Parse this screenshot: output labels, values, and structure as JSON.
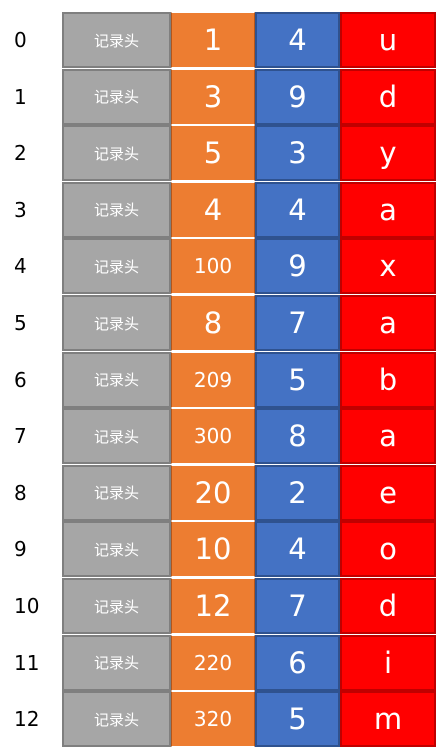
{
  "rows": [
    {
      "index": "0",
      "header": "记录头",
      "number": "1",
      "digit": "4",
      "letter": "u"
    },
    {
      "index": "1",
      "header": "记录头",
      "number": "3",
      "digit": "9",
      "letter": "d"
    },
    {
      "index": "2",
      "header": "记录头",
      "number": "5",
      "digit": "3",
      "letter": "y"
    },
    {
      "index": "3",
      "header": "记录头",
      "number": "4",
      "digit": "4",
      "letter": "a"
    },
    {
      "index": "4",
      "header": "记录头",
      "number": "100",
      "digit": "9",
      "letter": "x"
    },
    {
      "index": "5",
      "header": "记录头",
      "number": "8",
      "digit": "7",
      "letter": "a"
    },
    {
      "index": "6",
      "header": "记录头",
      "number": "209",
      "digit": "5",
      "letter": "b"
    },
    {
      "index": "7",
      "header": "记录头",
      "number": "300",
      "digit": "8",
      "letter": "a"
    },
    {
      "index": "8",
      "header": "记录头",
      "number": "20",
      "digit": "2",
      "letter": "e"
    },
    {
      "index": "9",
      "header": "记录头",
      "number": "10",
      "digit": "4",
      "letter": "o"
    },
    {
      "index": "10",
      "header": "记录头",
      "number": "12",
      "digit": "7",
      "letter": "d"
    },
    {
      "index": "11",
      "header": "记录头",
      "number": "220",
      "digit": "6",
      "letter": "i"
    },
    {
      "index": "12",
      "header": "记录头",
      "number": "320",
      "digit": "5",
      "letter": "m"
    }
  ],
  "colors": {
    "header": "#a6a6a6",
    "number": "#ed7d31",
    "digit": "#4472c4",
    "letter": "#ff0000"
  }
}
